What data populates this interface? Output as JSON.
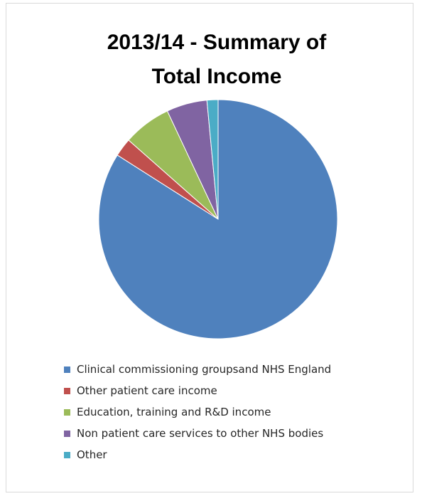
{
  "chart_data": {
    "type": "pie",
    "title_lines": [
      "2013/14 - Summary of",
      "Total Income"
    ],
    "legend_position": "bottom",
    "slices": [
      {
        "label": "Clinical commissioning groupsand NHS England",
        "value": 84.0,
        "color": "#4f81bd"
      },
      {
        "label": "Other patient care income",
        "value": 2.5,
        "color": "#c0504d"
      },
      {
        "label": "Education, training and R&D income",
        "value": 6.5,
        "color": "#9bbb59"
      },
      {
        "label": "Non patient care services to other NHS bodies",
        "value": 5.5,
        "color": "#8064a2"
      },
      {
        "label": "Other",
        "value": 1.5,
        "color": "#4bacc6"
      }
    ]
  }
}
